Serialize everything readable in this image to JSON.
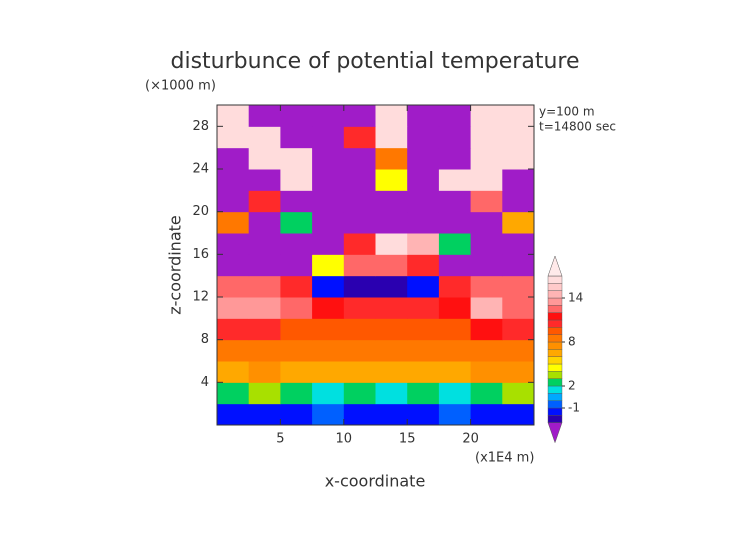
{
  "chart_data": {
    "type": "contour",
    "title": "disturbunce of potential temperature",
    "x_label": "x-coordinate",
    "y_label": "z-coordinate",
    "x_unit": "(x1E4 m)",
    "y_unit": "(×1000 m)",
    "annotations": [
      "y=100 m",
      "t=14800 sec"
    ],
    "xlim": [
      0,
      25
    ],
    "ylim": [
      0,
      30
    ],
    "xticks": [
      5,
      10,
      15,
      20
    ],
    "yticks": [
      4,
      8,
      12,
      16,
      20,
      24,
      28
    ],
    "x": [
      1.25,
      3.75,
      6.25,
      8.75,
      11.25,
      13.75,
      16.25,
      18.75,
      21.25,
      23.75
    ],
    "y": [
      1,
      3,
      5,
      7,
      9,
      11,
      13,
      15,
      17,
      19,
      21,
      23,
      25,
      27,
      29
    ],
    "values": [
      [
        -2,
        -2,
        -2,
        -1,
        -2,
        -2,
        -2,
        -1,
        -2,
        -2
      ],
      [
        2,
        3,
        2,
        1,
        2,
        1,
        2,
        1,
        2,
        3
      ],
      [
        6,
        7,
        6,
        6,
        6,
        6,
        6,
        6,
        7,
        7
      ],
      [
        8,
        8,
        8,
        8,
        8,
        8,
        8,
        8,
        8,
        8
      ],
      [
        10,
        10,
        9,
        9,
        9,
        9,
        9,
        9,
        11,
        10
      ],
      [
        13,
        13,
        12,
        11,
        10,
        10,
        10,
        11,
        14,
        12
      ],
      [
        12,
        12,
        10,
        -2,
        -3,
        -3,
        -2,
        10,
        12,
        12
      ],
      [
        -5,
        -5,
        -5,
        4,
        12,
        12,
        10,
        -5,
        -5,
        -5
      ],
      [
        -5,
        -5,
        -5,
        -5,
        10,
        16,
        14,
        2,
        -5,
        -5
      ],
      [
        8,
        -5,
        2,
        -5,
        -5,
        -5,
        -5,
        -5,
        -5,
        6
      ],
      [
        -5,
        10,
        -5,
        -5,
        -5,
        -5,
        -5,
        -5,
        12,
        -5
      ],
      [
        -5,
        -5,
        16,
        -5,
        -5,
        4,
        -5,
        16,
        16,
        -5
      ],
      [
        -5,
        16,
        16,
        -5,
        -5,
        8,
        -5,
        -5,
        16,
        16
      ],
      [
        16,
        16,
        -5,
        -5,
        10,
        16,
        -5,
        -5,
        16,
        16
      ],
      [
        16,
        -5,
        -5,
        -5,
        -5,
        16,
        -5,
        -5,
        16,
        16
      ]
    ],
    "levels": [
      -3,
      -2,
      -1,
      0,
      1,
      2,
      3,
      4,
      5,
      6,
      7,
      8,
      9,
      10,
      11,
      12,
      13,
      14,
      15,
      16,
      17
    ],
    "colors": [
      "#a01cc8",
      "#2a00b0",
      "#0010ff",
      "#0060ff",
      "#00a8ff",
      "#00e0e0",
      "#00d060",
      "#a8e000",
      "#ffff00",
      "#ffd400",
      "#ffa800",
      "#ff9000",
      "#ff7800",
      "#ff5800",
      "#ff2a2a",
      "#ff1010",
      "#ff6868",
      "#ff9898",
      "#ffb4b4",
      "#ffcaca",
      "#ffdcdc",
      "#ffeaea"
    ],
    "colorbar_ticks": [
      -1,
      2,
      8,
      14
    ]
  }
}
